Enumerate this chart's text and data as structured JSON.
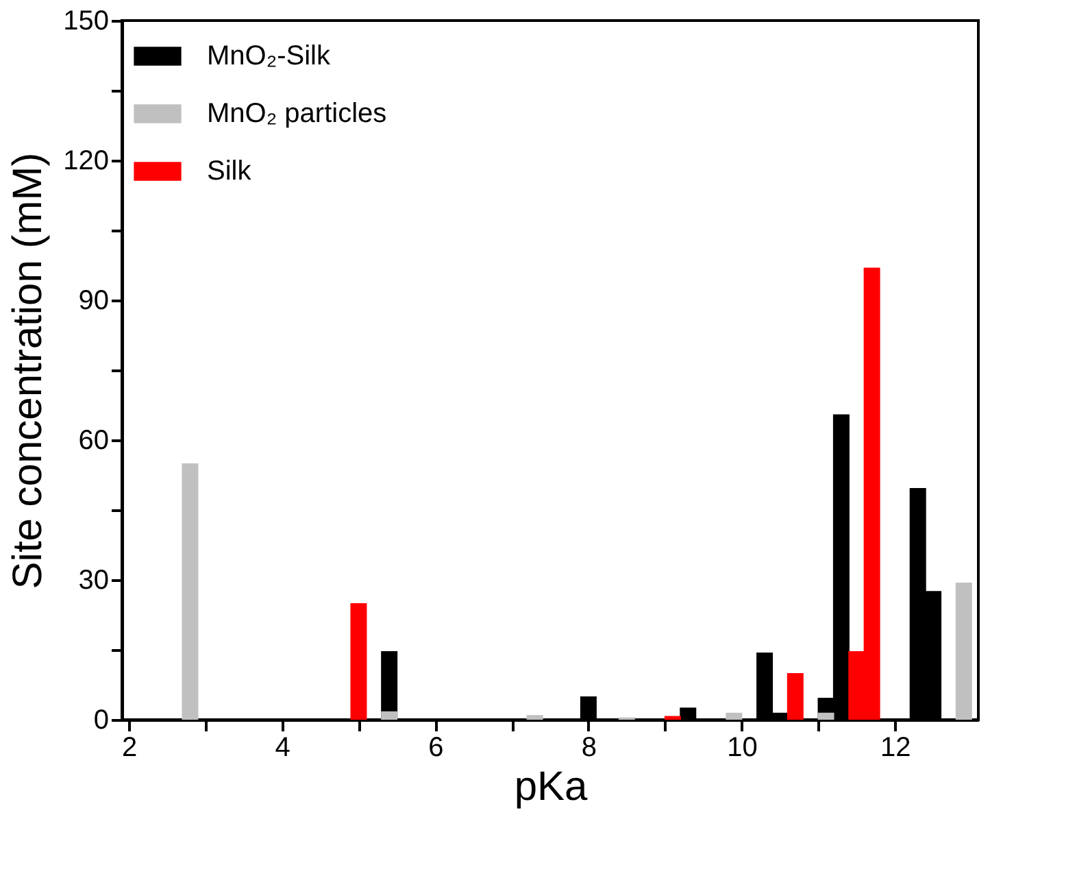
{
  "chart_data": {
    "type": "bar",
    "xlabel": "pKa",
    "ylabel": "Site concentration (mM)",
    "xlim": [
      2,
      13
    ],
    "ylim": [
      0,
      150
    ],
    "xticks": [
      2,
      {
        "value": 3,
        "label": null
      },
      4,
      {
        "value": 5,
        "label": null
      },
      6,
      {
        "value": 7,
        "label": null
      },
      8,
      {
        "value": 9,
        "label": null
      },
      10,
      {
        "value": 11,
        "label": null
      },
      12
    ],
    "yticks": [
      0,
      {
        "value": 15,
        "label": null
      },
      30,
      {
        "value": 45,
        "label": null
      },
      60,
      {
        "value": 75,
        "label": null
      },
      90,
      {
        "value": 105,
        "label": null
      },
      120,
      {
        "value": 135,
        "label": null
      },
      150
    ],
    "legend": "top left",
    "grid": false,
    "series": [
      {
        "name": "MnO₂-Silk",
        "color": "#000000",
        "x": [
          5.4,
          8.0,
          9.3,
          10.3,
          10.5,
          11.1,
          11.3,
          12.3,
          12.5
        ],
        "values": [
          14.7,
          5,
          2.6,
          14.4,
          1.5,
          4.7,
          65.5,
          49.7,
          27.6
        ]
      },
      {
        "name": "MnO₂ particles",
        "color": "#c0c0c0",
        "x": [
          2.8,
          5.4,
          7.3,
          8.5,
          9.9,
          11.1,
          12.9
        ],
        "values": [
          55,
          1.8,
          1,
          0.5,
          1.5,
          1.5,
          29.4
        ]
      },
      {
        "name": "Silk",
        "color": "#ff0000",
        "x": [
          5.0,
          9.1,
          10.7,
          11.5,
          11.7
        ],
        "values": [
          25,
          0.8,
          10,
          14.7,
          97
        ]
      }
    ]
  }
}
